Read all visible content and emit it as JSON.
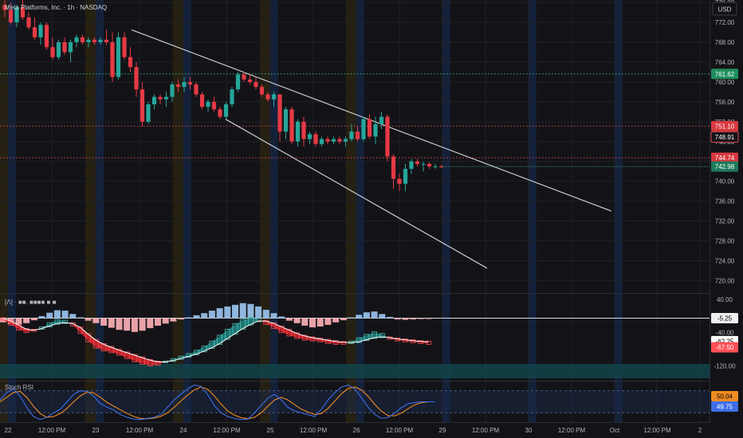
{
  "header": {
    "title": "Meta Platforms, Inc. · 1h · NASDAQ",
    "currency_button": "USD"
  },
  "colors": {
    "background": "#131317",
    "up": "#26a69a",
    "down": "#e53a45",
    "grid": "#1f2128",
    "trendline": "#c9cbd1",
    "green_level": "#2ec27e",
    "red_level": "#e04a4f",
    "session_blue": "#14213a",
    "session_orange": "#2b2412",
    "macd_fill_up": "#1f8a85",
    "macd_fill_down": "#e2262e",
    "hist_pos": "#8fb6de",
    "hist_neg": "#e8a3a8",
    "stoch_k": "#3d6ee8",
    "stoch_d": "#f08c22",
    "stoch_band": "#1b2a4a"
  },
  "chart_data": [
    {
      "type": "candlestick",
      "title": "Meta Platforms, Inc. · 1h · NASDAQ",
      "ylim": [
        717.5,
        776.5
      ],
      "yticks": [
        "776.00",
        "772.00",
        "768.00",
        "764.00",
        "760.00",
        "756.00",
        "752.00",
        "748.00",
        "744.00",
        "740.00",
        "736.00",
        "732.00",
        "728.00",
        "724.00",
        "720.00"
      ],
      "x_labels": [
        "22",
        "12:00 PM",
        "23",
        "12:00 PM",
        "24",
        "12:00 PM",
        "25",
        "12:00 PM",
        "26",
        "12:00 PM",
        "29",
        "12:00 PM",
        "30",
        "12:00 PM",
        "Oct",
        "12:00 PM",
        "2"
      ],
      "candles": [
        [
          775.5,
          776.5,
          773.0,
          774.5
        ],
        [
          774.5,
          776.0,
          771.5,
          772.0
        ],
        [
          772.0,
          775.5,
          771.0,
          775.0
        ],
        [
          775.0,
          776.5,
          772.5,
          773.0
        ],
        [
          773.0,
          774.0,
          770.5,
          771.0
        ],
        [
          771.0,
          773.0,
          768.5,
          769.0
        ],
        [
          769.0,
          772.0,
          767.5,
          771.5
        ],
        [
          771.5,
          772.0,
          766.5,
          767.0
        ],
        [
          767.0,
          769.0,
          764.5,
          765.0
        ],
        [
          765.0,
          768.5,
          764.5,
          768.0
        ],
        [
          768.0,
          769.0,
          765.5,
          766.0
        ],
        [
          766.0,
          768.5,
          764.0,
          768.0
        ],
        [
          768.0,
          769.5,
          767.0,
          769.0
        ],
        [
          769.0,
          769.5,
          767.5,
          768.0
        ],
        [
          768.0,
          769.0,
          767.0,
          768.5
        ],
        [
          768.5,
          769.0,
          767.5,
          768.0
        ],
        [
          768.0,
          769.0,
          767.5,
          768.5
        ],
        [
          768.5,
          770.5,
          767.5,
          768.0
        ],
        [
          768.0,
          770.0,
          760.0,
          761.0
        ],
        [
          761.0,
          770.0,
          760.5,
          769.0
        ],
        [
          769.0,
          770.0,
          764.5,
          765.0
        ],
        [
          765.0,
          767.0,
          762.0,
          763.0
        ],
        [
          763.0,
          764.0,
          757.0,
          758.5
        ],
        [
          758.5,
          760.0,
          751.0,
          752.0
        ],
        [
          752.0,
          756.0,
          751.5,
          755.5
        ],
        [
          755.5,
          757.5,
          754.5,
          757.0
        ],
        [
          757.0,
          757.5,
          755.5,
          756.5
        ],
        [
          756.5,
          758.0,
          755.0,
          757.0
        ],
        [
          757.0,
          760.0,
          756.0,
          759.5
        ],
        [
          759.5,
          760.5,
          758.0,
          759.0
        ],
        [
          759.0,
          761.0,
          758.0,
          760.0
        ],
        [
          760.0,
          761.0,
          758.5,
          759.5
        ],
        [
          759.5,
          760.0,
          757.0,
          757.5
        ],
        [
          757.5,
          758.0,
          754.5,
          755.0
        ],
        [
          755.0,
          756.5,
          754.0,
          756.0
        ],
        [
          756.0,
          757.0,
          754.0,
          754.5
        ],
        [
          754.5,
          755.0,
          752.5,
          753.0
        ],
        [
          753.0,
          756.0,
          752.5,
          755.5
        ],
        [
          755.5,
          759.0,
          755.0,
          758.5
        ],
        [
          758.5,
          762.0,
          758.0,
          761.5
        ],
        [
          761.5,
          762.0,
          760.0,
          760.5
        ],
        [
          760.5,
          761.5,
          759.5,
          760.0
        ],
        [
          760.0,
          761.0,
          758.5,
          759.0
        ],
        [
          759.0,
          759.5,
          757.0,
          757.5
        ],
        [
          757.5,
          758.0,
          756.0,
          756.5
        ],
        [
          756.5,
          758.0,
          755.0,
          757.5
        ],
        [
          757.5,
          757.5,
          748.0,
          750.0
        ],
        [
          750.0,
          755.0,
          748.5,
          754.5
        ],
        [
          754.5,
          755.0,
          747.5,
          748.0
        ],
        [
          748.0,
          752.5,
          747.0,
          752.0
        ],
        [
          752.0,
          753.0,
          747.0,
          748.5
        ],
        [
          748.5,
          750.0,
          747.5,
          749.5
        ],
        [
          749.5,
          750.0,
          747.0,
          747.5
        ],
        [
          747.5,
          749.0,
          747.0,
          748.5
        ],
        [
          748.5,
          749.0,
          747.5,
          748.0
        ],
        [
          748.0,
          749.0,
          747.5,
          748.5
        ],
        [
          748.5,
          749.0,
          747.5,
          748.0
        ],
        [
          748.0,
          749.0,
          747.0,
          748.5
        ],
        [
          748.5,
          751.5,
          748.0,
          750.0
        ],
        [
          750.0,
          751.0,
          748.0,
          748.5
        ],
        [
          748.5,
          753.0,
          748.0,
          752.5
        ],
        [
          752.5,
          753.5,
          748.5,
          749.0
        ],
        [
          749.0,
          753.0,
          747.5,
          751.5
        ],
        [
          751.5,
          754.0,
          750.5,
          753.0
        ],
        [
          753.0,
          753.5,
          744.0,
          745.0
        ],
        [
          745.0,
          745.5,
          738.5,
          740.5
        ],
        [
          740.5,
          741.5,
          738.0,
          739.5
        ],
        [
          739.5,
          743.5,
          738.0,
          742.5
        ],
        [
          742.5,
          744.5,
          741.5,
          744.0
        ],
        [
          744.0,
          744.5,
          743.0,
          743.5
        ],
        [
          743.5,
          744.0,
          742.0,
          743.5
        ],
        [
          743.5,
          743.8,
          742.5,
          743.0
        ],
        [
          743.0,
          743.5,
          742.5,
          743.0
        ],
        [
          743.0,
          743.3,
          742.7,
          742.98
        ]
      ],
      "trendlines": [
        {
          "from": [
            "Sep 23 12:00 PM",
            770.5
          ],
          "to": [
            "Oct 1",
            734.0
          ]
        },
        {
          "from": [
            "Sep 24 12:00 PM",
            752.5
          ],
          "to": [
            "Sep 30",
            722.5
          ]
        }
      ],
      "levels": [
        {
          "price": 761.62,
          "label": "761.62",
          "style": "dotted-green"
        },
        {
          "price": 751.1,
          "label": "751.10",
          "style": "dotted-red"
        },
        {
          "price": 748.91,
          "label": "748.91",
          "style": "box-red"
        },
        {
          "price": 744.74,
          "label": "744.74",
          "style": "dotted-red"
        },
        {
          "price": 742.98,
          "label": "742.98",
          "style": "box-green"
        }
      ]
    },
    {
      "type": "macd",
      "label": "[Λ] · ■■. ■■■■ ■ ■",
      "ylim": [
        -155,
        53
      ],
      "yticks": [
        "40.00",
        "-40.00",
        "-120.00"
      ],
      "zero_value": -5.25,
      "badges": [
        "-5.25",
        "-62.25",
        "-67.50"
      ],
      "histogram": [
        -10,
        -14,
        -16,
        -12,
        -5,
        5,
        13,
        19,
        18,
        10,
        2,
        -6,
        -12,
        -18,
        -23,
        -28,
        -30,
        -33,
        -30,
        -24,
        -18,
        -13,
        -8,
        -3,
        2,
        7,
        12,
        18,
        24,
        28,
        32,
        36,
        34,
        28,
        20,
        12,
        4,
        -6,
        -12,
        -18,
        -22,
        -20,
        -16,
        -10,
        -5,
        2,
        8,
        14,
        16,
        10,
        3,
        -3,
        -4,
        -3,
        -2,
        -1
      ],
      "macd": [
        -8,
        -20,
        -32,
        -38,
        -35,
        -28,
        -18,
        -10,
        -12,
        -22,
        -40,
        -60,
        -75,
        -82,
        -86,
        -92,
        -100,
        -108,
        -114,
        -118,
        -116,
        -110,
        -104,
        -98,
        -92,
        -84,
        -74,
        -62,
        -48,
        -34,
        -20,
        -10,
        -4,
        -8,
        -18,
        -28,
        -38,
        -46,
        -52,
        -56,
        -58,
        -60,
        -64,
        -66,
        -66,
        -62,
        -54,
        -46,
        -40,
        -44,
        -54,
        -58,
        -60,
        -62,
        -64,
        -66
      ],
      "signal": [
        -6,
        -12,
        -22,
        -32,
        -34,
        -30,
        -24,
        -18,
        -16,
        -18,
        -28,
        -44,
        -58,
        -68,
        -75,
        -82,
        -88,
        -94,
        -100,
        -106,
        -110,
        -110,
        -107,
        -102,
        -97,
        -91,
        -84,
        -76,
        -66,
        -54,
        -42,
        -30,
        -20,
        -12,
        -12,
        -18,
        -26,
        -34,
        -42,
        -48,
        -52,
        -55,
        -58,
        -61,
        -63,
        -64,
        -62,
        -57,
        -52,
        -50,
        -52,
        -55,
        -57,
        -59,
        -61,
        -62
      ]
    },
    {
      "type": "stoch_rsi",
      "label": "Stoch RSI",
      "ylim": [
        -5,
        105
      ],
      "badges": [
        "50.04",
        "49.75"
      ],
      "k": [
        55,
        75,
        85,
        65,
        35,
        10,
        2,
        8,
        20,
        30,
        50,
        70,
        80,
        78,
        65,
        45,
        35,
        28,
        15,
        8,
        3,
        2,
        5,
        8,
        15,
        35,
        55,
        70,
        85,
        95,
        92,
        70,
        40,
        20,
        10,
        5,
        2,
        3,
        20,
        40,
        60,
        70,
        55,
        35,
        25,
        20,
        15,
        10,
        30,
        55,
        75,
        90,
        95,
        85,
        60,
        35,
        15,
        5,
        8,
        20,
        35,
        45,
        48,
        50,
        50,
        50
      ],
      "d": [
        50,
        62,
        75,
        78,
        62,
        38,
        18,
        8,
        10,
        18,
        32,
        50,
        66,
        76,
        74,
        62,
        48,
        38,
        28,
        18,
        10,
        5,
        4,
        6,
        10,
        20,
        35,
        52,
        68,
        82,
        90,
        84,
        66,
        44,
        25,
        14,
        7,
        4,
        8,
        20,
        38,
        55,
        62,
        55,
        42,
        30,
        22,
        16,
        18,
        32,
        52,
        72,
        86,
        90,
        82,
        64,
        42,
        24,
        12,
        12,
        20,
        32,
        42,
        48,
        50,
        50
      ]
    }
  ]
}
